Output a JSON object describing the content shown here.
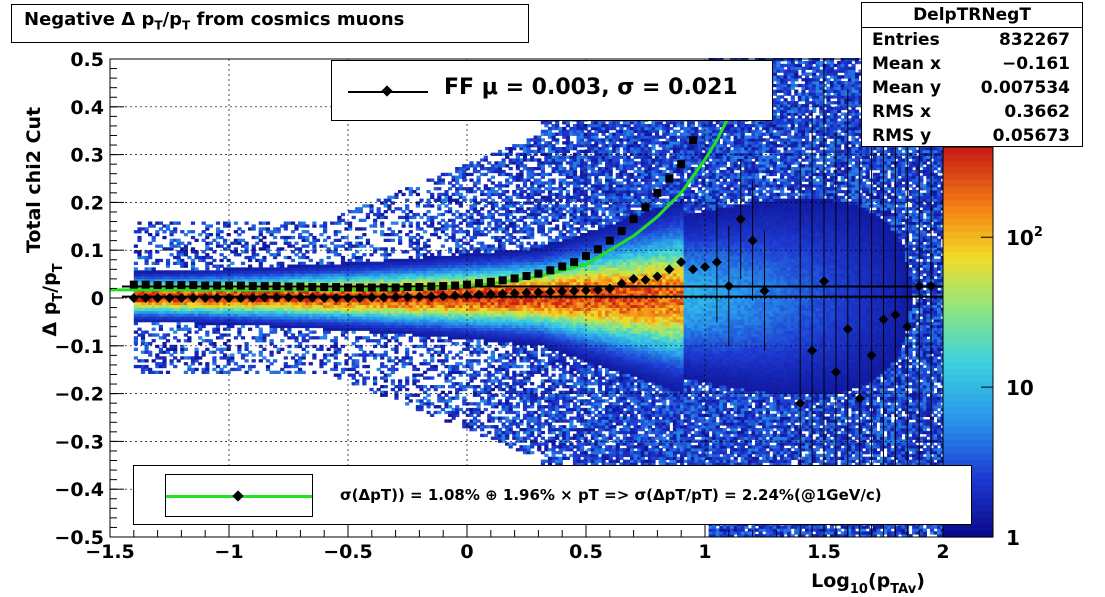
{
  "title": "Negative Δ p_T/p_T from cosmics muons",
  "stats": {
    "name": "DelpTRNegT",
    "rows": [
      {
        "label": "Entries",
        "value": "832267"
      },
      {
        "label": "Mean x",
        "value": "−0.161"
      },
      {
        "label": "Mean y",
        "value": "0.007534"
      },
      {
        "label": "RMS x",
        "value": "0.3662"
      },
      {
        "label": "RMS y",
        "value": "0.05673"
      }
    ]
  },
  "fit_legend": {
    "text": "FF μ =  0.003, σ =   0.021"
  },
  "res_legend": {
    "text": "σ(ΔpT)) =  1.08% ⊕  1.96% × pT => σ(ΔpT/pT) =  2.24%(@1GeV/c)"
  },
  "chart_data": {
    "type": "heatmap",
    "xlabel": "Log_10(p_TAv)",
    "ylabel_line1": "Total chi2 Cut",
    "ylabel_line2": "Δ p_T/p_T",
    "xlim": [
      -1.5,
      2.0
    ],
    "ylim": [
      -0.5,
      0.5
    ],
    "x_ticks": [
      -1.5,
      -1,
      -0.5,
      0,
      0.5,
      1,
      1.5,
      2
    ],
    "x_tick_labels": [
      "−1.5",
      "−1",
      "−0.5",
      "0",
      "0.5",
      "1",
      "1.5",
      "2"
    ],
    "y_ticks": [
      -0.5,
      -0.4,
      -0.3,
      -0.2,
      -0.1,
      0,
      0.1,
      0.2,
      0.3,
      0.4,
      0.5
    ],
    "y_tick_labels": [
      "−0.5",
      "−0.4",
      "−0.3",
      "−0.2",
      "−0.1",
      "0",
      "0.1",
      "0.2",
      "0.3",
      "0.4",
      "0.5"
    ],
    "z_scale": "log",
    "z_ticks": [
      {
        "value": 1,
        "label": "1"
      },
      {
        "value": 10,
        "label": "10"
      },
      {
        "value": 100,
        "label": "10^2"
      }
    ],
    "grid": true,
    "colors": {
      "fit_curve": "#22e022",
      "markers": "#000000"
    },
    "series": [
      {
        "marker": "square",
        "x": [
          -1.4,
          -1.35,
          -1.3,
          -1.25,
          -1.2,
          -1.15,
          -1.1,
          -1.05,
          -1.0,
          -0.95,
          -0.9,
          -0.85,
          -0.8,
          -0.75,
          -0.7,
          -0.65,
          -0.6,
          -0.55,
          -0.5,
          -0.45,
          -0.4,
          -0.35,
          -0.3,
          -0.25,
          -0.2,
          -0.15,
          -0.1,
          -0.05,
          0.0,
          0.05,
          0.1,
          0.15,
          0.2,
          0.25,
          0.3,
          0.35,
          0.4,
          0.45,
          0.5,
          0.55,
          0.6,
          0.65,
          0.7,
          0.75,
          0.8,
          0.85,
          0.9,
          0.95
        ],
        "y": [
          0.028,
          0.028,
          0.027,
          0.027,
          0.027,
          0.027,
          0.026,
          0.026,
          0.026,
          0.026,
          0.025,
          0.025,
          0.025,
          0.024,
          0.024,
          0.023,
          0.023,
          0.023,
          0.022,
          0.022,
          0.022,
          0.022,
          0.022,
          0.023,
          0.023,
          0.024,
          0.025,
          0.026,
          0.028,
          0.031,
          0.034,
          0.037,
          0.041,
          0.046,
          0.051,
          0.058,
          0.066,
          0.075,
          0.088,
          0.102,
          0.12,
          0.14,
          0.165,
          0.19,
          0.22,
          0.25,
          0.28,
          0.33
        ]
      },
      {
        "marker": "diamond",
        "x": [
          -1.4,
          -1.35,
          -1.3,
          -1.25,
          -1.2,
          -1.15,
          -1.1,
          -1.05,
          -1.0,
          -0.95,
          -0.9,
          -0.85,
          -0.8,
          -0.75,
          -0.7,
          -0.65,
          -0.6,
          -0.55,
          -0.5,
          -0.45,
          -0.4,
          -0.35,
          -0.3,
          -0.25,
          -0.2,
          -0.15,
          -0.1,
          -0.05,
          0.0,
          0.05,
          0.1,
          0.15,
          0.2,
          0.25,
          0.3,
          0.35,
          0.4,
          0.45,
          0.5,
          0.55,
          0.6,
          0.65,
          0.7,
          0.75,
          0.8,
          0.85,
          0.9,
          0.95,
          1.0,
          1.05,
          1.1,
          1.15,
          1.2,
          1.25,
          1.4,
          1.45,
          1.5,
          1.55,
          1.6,
          1.65,
          1.7,
          1.75,
          1.8,
          1.85,
          1.9,
          1.95
        ],
        "y": [
          0.0,
          0.0,
          0.0,
          0.0,
          0.0,
          0.0,
          0.0,
          0.0,
          0.0,
          0.0,
          0.0,
          0.001,
          0.001,
          0.001,
          0.001,
          0.001,
          0.0,
          0.0,
          0.0,
          0.0,
          0.001,
          0.001,
          0.002,
          0.002,
          0.003,
          0.003,
          0.004,
          0.005,
          0.006,
          0.007,
          0.008,
          0.009,
          0.01,
          0.011,
          0.012,
          0.013,
          0.014,
          0.015,
          0.016,
          0.017,
          0.02,
          0.03,
          0.04,
          0.038,
          0.045,
          0.06,
          0.075,
          0.06,
          0.065,
          0.075,
          0.025,
          0.165,
          0.12,
          0.015,
          -0.22,
          -0.11,
          0.035,
          -0.155,
          -0.065,
          -0.21,
          -0.12,
          -0.045,
          -0.035,
          -0.06,
          0.025,
          0.025
        ]
      }
    ],
    "fit_curve": {
      "x": [
        -1.5,
        -1.3,
        -1.1,
        -0.9,
        -0.7,
        -0.5,
        -0.3,
        -0.1,
        0.1,
        0.3,
        0.5,
        0.7,
        0.8,
        0.9,
        1.0,
        1.05,
        1.1,
        1.15
      ],
      "y": [
        0.017,
        0.017,
        0.017,
        0.017,
        0.017,
        0.017,
        0.018,
        0.022,
        0.03,
        0.045,
        0.07,
        0.13,
        0.17,
        0.22,
        0.29,
        0.33,
        0.38,
        0.43
      ]
    },
    "reference_lines": [
      0.003,
      0.024
    ]
  }
}
